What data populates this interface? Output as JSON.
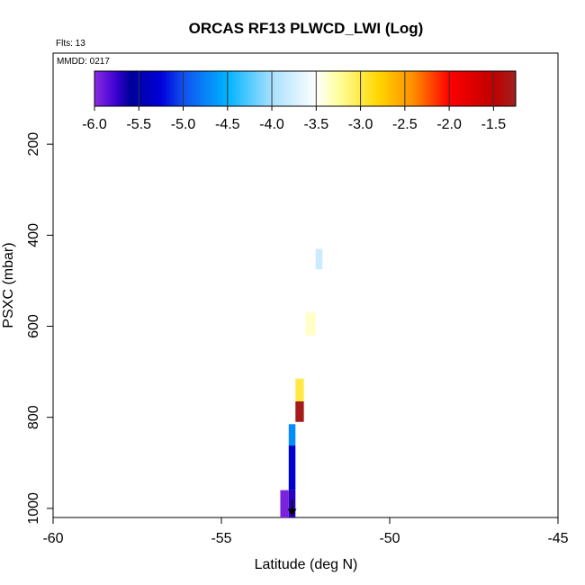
{
  "chart_data": {
    "type": "heatmap",
    "title": "ORCAS RF13 PLWCD_LWI (Log)",
    "flights_label": "Flts: 13",
    "date_label": "MMDD: 0217",
    "xlabel": "Latitude (deg N)",
    "ylabel": "PSXC (mbar)",
    "xlim": [
      -60,
      -45
    ],
    "ylim": [
      1020,
      0
    ],
    "x_ticks": [
      -60,
      -55,
      -50,
      -45
    ],
    "x_tick_labels": [
      "-60",
      "-55",
      "-50",
      "-45"
    ],
    "y_ticks": [
      200,
      400,
      600,
      800,
      1000
    ],
    "y_tick_labels": [
      "200",
      "400",
      "600",
      "800",
      "1000"
    ],
    "colorbar": {
      "range": [
        -6.0,
        -1.25
      ],
      "ticks": [
        -6.0,
        -5.5,
        -5.0,
        -4.5,
        -4.0,
        -3.5,
        -3.0,
        -2.5,
        -2.0,
        -1.5
      ],
      "tick_labels": [
        "-6.0",
        "-5.5",
        "-5.0",
        "-4.5",
        "-4.0",
        "-3.5",
        "-3.0",
        "-2.5",
        "-2.0",
        "-1.5"
      ],
      "stops": [
        {
          "v": -6.0,
          "color": "#8a2be2"
        },
        {
          "v": -5.75,
          "color": "#3a00d0"
        },
        {
          "v": -5.6,
          "color": "#00009a"
        },
        {
          "v": -5.25,
          "color": "#0000d8"
        },
        {
          "v": -5.0,
          "color": "#1050f0"
        },
        {
          "v": -4.5,
          "color": "#00b4ff"
        },
        {
          "v": -4.0,
          "color": "#a8e0ff"
        },
        {
          "v": -3.5,
          "color": "#ffffff"
        },
        {
          "v": -3.25,
          "color": "#ffffa0"
        },
        {
          "v": -2.8,
          "color": "#ffd700"
        },
        {
          "v": -2.4,
          "color": "#ff8c00"
        },
        {
          "v": -2.0,
          "color": "#ff0000"
        },
        {
          "v": -1.5,
          "color": "#c00000"
        },
        {
          "v": -1.25,
          "color": "#a02020"
        }
      ]
    },
    "cells": [
      {
        "lat": [
          -52.2,
          -52.0
        ],
        "p": [
          430,
          475
        ],
        "value": -3.8
      },
      {
        "lat": [
          -52.5,
          -52.2
        ],
        "p": [
          570,
          620
        ],
        "value": -3.35
      },
      {
        "lat": [
          -52.8,
          -52.55
        ],
        "p": [
          715,
          765
        ],
        "value": -3.0
      },
      {
        "lat": [
          -52.8,
          -52.55
        ],
        "p": [
          765,
          810
        ],
        "value": -1.3
      },
      {
        "lat": [
          -53.0,
          -52.8
        ],
        "p": [
          815,
          862
        ],
        "value": -4.7
      },
      {
        "lat": [
          -53.0,
          -52.8
        ],
        "p": [
          862,
          960
        ],
        "value": -5.3
      },
      {
        "lat": [
          -53.0,
          -52.8
        ],
        "p": [
          960,
          1020
        ],
        "value": -5.7
      },
      {
        "lat": [
          -53.25,
          -53.0
        ],
        "p": [
          960,
          1020
        ],
        "value": -5.95
      }
    ],
    "marker": {
      "lat": -52.9,
      "p": 1005,
      "symbol": "down-arrow",
      "color": "#000000"
    },
    "grid": false,
    "legend": "colorbar-top"
  }
}
